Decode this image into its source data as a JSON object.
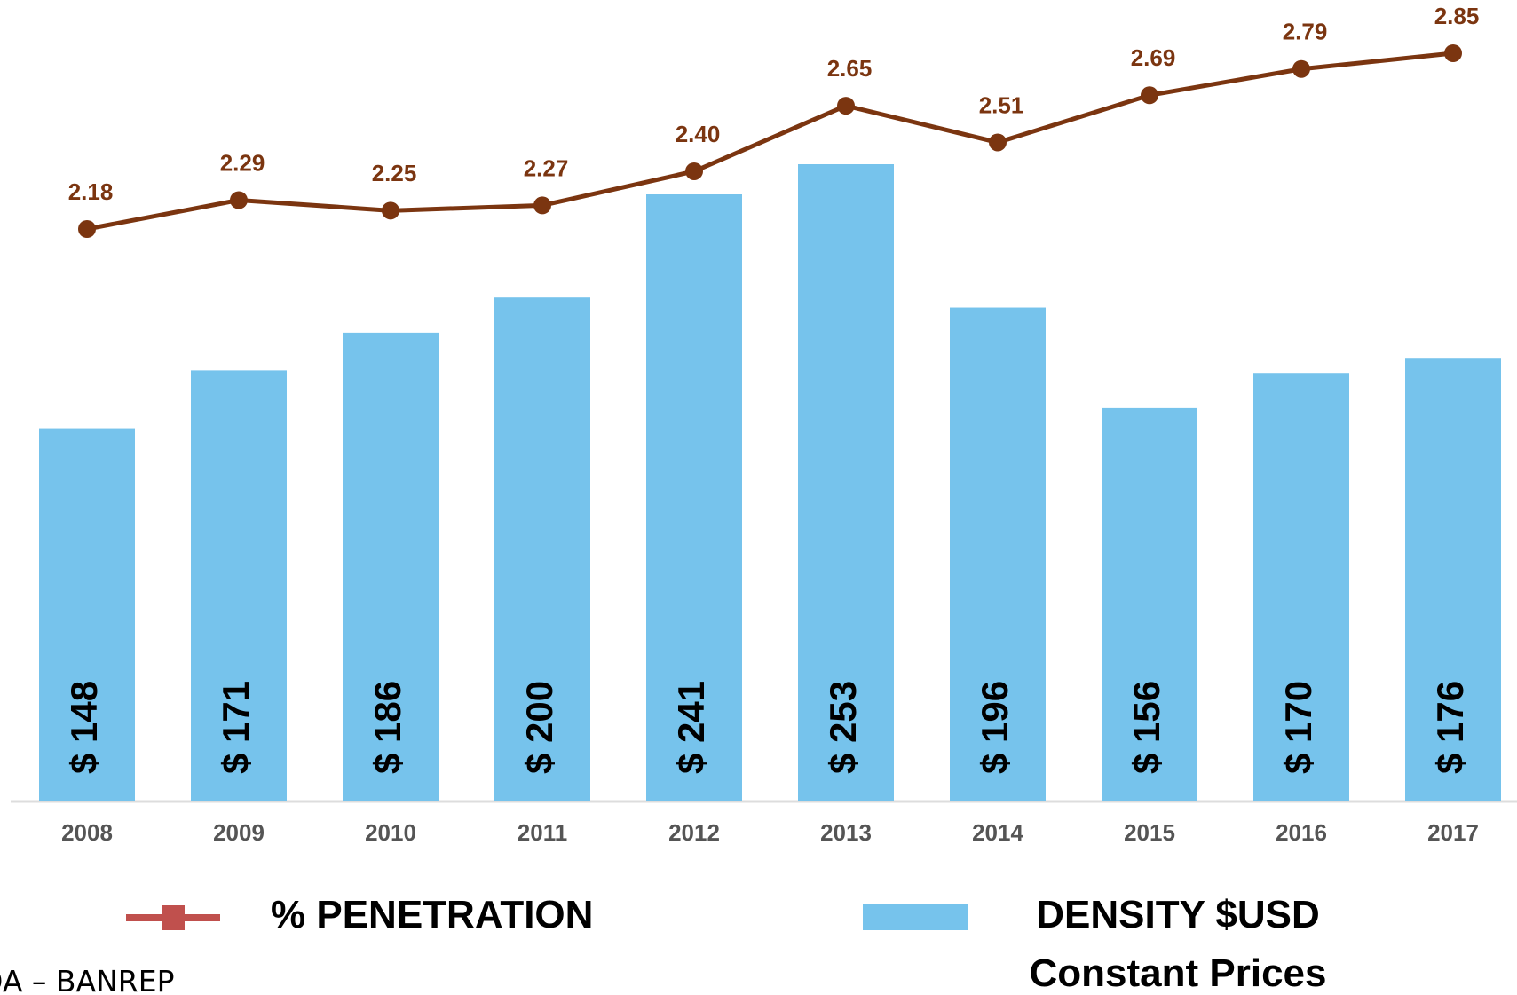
{
  "chart_data": {
    "type": "bar",
    "categories": [
      "2008",
      "2009",
      "2010",
      "2011",
      "2012",
      "2013",
      "2014",
      "2015",
      "2016",
      "2017"
    ],
    "series": [
      {
        "name": "DENSITY $USD Constant Prices",
        "type": "bar",
        "color": "#76c3ec",
        "values": [
          148,
          171,
          186,
          200,
          241,
          253,
          196,
          156,
          170,
          176
        ],
        "value_labels": [
          "$ 148",
          "$ 171",
          "$ 186",
          "$ 200",
          "$ 241",
          "$ 253",
          "$ 196",
          "$ 156",
          "$ 170",
          "$ 176"
        ]
      },
      {
        "name": "% PENETRATION",
        "type": "line",
        "axis": "y2",
        "color": "#7b3510",
        "values": [
          2.18,
          2.29,
          2.25,
          2.27,
          2.4,
          2.65,
          2.51,
          2.69,
          2.79,
          2.85
        ],
        "value_labels": [
          "2.18",
          "2.29",
          "2.25",
          "2.27",
          "2.40",
          "2.65",
          "2.51",
          "2.69",
          "2.79",
          "2.85"
        ]
      }
    ],
    "source": "DA – BANREP"
  }
}
